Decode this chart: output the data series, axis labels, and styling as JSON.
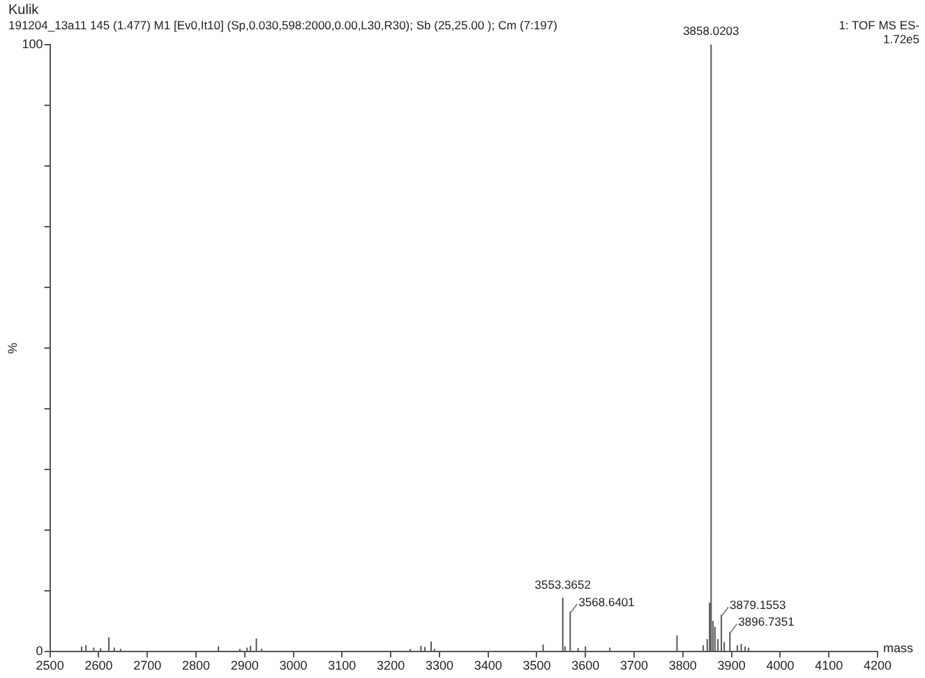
{
  "chart_data": {
    "type": "line",
    "title": "Kulik",
    "subtitle": "191204_13a11  145 (1.477) M1 [Ev0,It10] (Sp,0.030,598:2000,0.00,L30,R30); Sb (25,25.00 ); Cm (7:197)",
    "xlabel": "mass",
    "ylabel": "%",
    "annotations": [
      "1: TOF MS ES-",
      "1.72e5",
      {
        "text": "3858.0203",
        "x": 3858.0203,
        "y": 100
      },
      {
        "text": "3553.3652",
        "x": 3553.3652,
        "y": 8.8
      },
      {
        "text": "3568.6401",
        "x": 3568.6401,
        "y": 6.5
      },
      {
        "text": "3879.1553",
        "x": 3879.1553,
        "y": 6.0
      },
      {
        "text": "3896.7351",
        "x": 3896.7351,
        "y": 3.2
      }
    ],
    "series": [
      {
        "color": "#555555",
        "x": [
          2500,
          2565,
          2565,
          2565,
          2574,
          2574,
          2574,
          2590,
          2590,
          2590,
          2604,
          2604,
          2604,
          2621,
          2621,
          2621,
          2632,
          2632,
          2632,
          2645,
          2645,
          2645,
          2846,
          2846,
          2846,
          2890,
          2890,
          2890,
          2905,
          2905,
          2905,
          2912,
          2912,
          2912,
          2924,
          2924,
          2924,
          2935,
          2935,
          2935,
          3240,
          3240,
          3240,
          3262,
          3262,
          3262,
          3270,
          3270,
          3270,
          3283,
          3283,
          3283,
          3290,
          3290,
          3290,
          3513,
          3513,
          3513,
          3553.3652,
          3553.3652,
          3553.3652,
          3558,
          3558,
          3558,
          3568.6401,
          3568.6401,
          3568.6401,
          3585,
          3585,
          3585,
          3600,
          3600,
          3600,
          3650,
          3650,
          3650,
          3788,
          3788,
          3788,
          3842,
          3842,
          3842,
          3850,
          3850,
          3850,
          3855,
          3855,
          3855,
          3858.0203,
          3858.0203,
          3858.0203,
          3862,
          3862,
          3862,
          3866,
          3866,
          3866,
          3872,
          3872,
          3872,
          3879.1553,
          3879.1553,
          3879.1553,
          3885,
          3885,
          3885,
          3896.7351,
          3896.7351,
          3896.7351,
          3912,
          3912,
          3912,
          3920,
          3920,
          3920,
          3928,
          3928,
          3928,
          3935,
          3935,
          3935,
          4200
        ],
        "values": [
          0,
          0,
          0.8,
          0,
          0,
          1.0,
          0,
          0,
          0.6,
          0,
          0,
          0.5,
          0,
          0,
          2.3,
          0,
          0,
          0.6,
          0,
          0,
          0.4,
          0,
          0,
          0.8,
          0,
          0,
          0.4,
          0,
          0,
          0.6,
          0,
          0,
          0.9,
          0,
          0,
          2.1,
          0,
          0,
          0.4,
          0,
          0,
          0.4,
          0,
          0,
          0.9,
          0,
          0,
          0.7,
          0,
          0,
          1.6,
          0,
          0,
          0.4,
          0,
          0,
          1.1,
          0,
          0,
          8.8,
          0,
          0,
          0.8,
          0,
          0,
          6.5,
          0,
          0,
          0.5,
          0,
          0,
          0.8,
          0,
          0,
          0.6,
          0,
          0,
          2.6,
          0,
          0,
          1.0,
          0,
          0,
          2.0,
          0,
          0,
          8,
          0,
          0,
          100,
          0,
          0,
          5,
          0,
          0,
          4,
          0,
          0,
          2,
          0,
          0,
          6.0,
          0,
          0,
          1.5,
          0,
          0,
          3.2,
          0,
          0,
          1.0,
          0,
          0,
          1.2,
          0,
          0,
          0.8,
          0,
          0,
          0.6,
          0,
          0
        ]
      }
    ],
    "xlim": [
      2500,
      4200
    ],
    "xticks": [
      2500,
      2600,
      2700,
      2800,
      2900,
      3000,
      3100,
      3200,
      3300,
      3400,
      3500,
      3600,
      3700,
      3800,
      3900,
      4000,
      4100,
      4200
    ],
    "ylim": [
      0,
      100
    ],
    "yticks": [
      0,
      {
        "value": 10,
        "label": null
      },
      {
        "value": 20,
        "label": null
      },
      {
        "value": 30,
        "label": null
      },
      {
        "value": 40,
        "label": null
      },
      {
        "value": 50,
        "label": null
      },
      {
        "value": 60,
        "label": null
      },
      {
        "value": 70,
        "label": null
      },
      {
        "value": 80,
        "label": null
      },
      {
        "value": 90,
        "label": null
      },
      100
    ],
    "grid": false,
    "legend": false,
    "marker": "none",
    "line_style": "solid"
  }
}
